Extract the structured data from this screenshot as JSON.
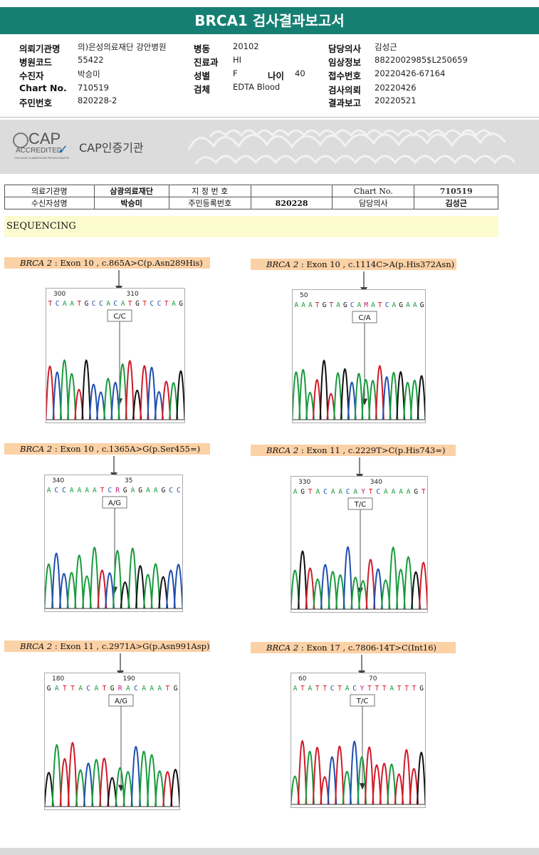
{
  "report": {
    "title": "BRCA1 검사결과보고서"
  },
  "info": {
    "left": [
      {
        "label": "의뢰기관명",
        "value": "의)은성의료재단 강안병원"
      },
      {
        "label": "병원코드",
        "value": "55422"
      },
      {
        "label": "수진자",
        "value": "박승미"
      },
      {
        "label": "Chart No.",
        "value": "710519"
      },
      {
        "label": "주민번호",
        "value": "820228-2"
      }
    ],
    "middle": [
      {
        "label": "병동",
        "value": "20102"
      },
      {
        "label": "진료과",
        "value": "HI"
      },
      {
        "label": "성별",
        "value": "F"
      },
      {
        "label": "검체",
        "value": "EDTA Blood"
      }
    ],
    "age": {
      "label": "나이",
      "value": "40"
    },
    "right": [
      {
        "label": "담당의사",
        "value": "김성근"
      },
      {
        "label": "임상정보",
        "value": "8822002985$L250659"
      },
      {
        "label": "접수번호",
        "value": "20220426-67164"
      },
      {
        "label": "검사의뢰",
        "value": "20220426"
      },
      {
        "label": "결과보고",
        "value": "20220521"
      }
    ]
  },
  "cap": {
    "logo_text": "CAP",
    "accredited": "ACCREDITED",
    "college": "COLLEGE of AMERICAN PATHOLOGISTS",
    "label": "CAP인증기관"
  },
  "patient_table": {
    "row1": {
      "l1": "의료기관명",
      "v1": "삼광의료재단",
      "l2": "지 정 번 호",
      "v2": "",
      "l3": "Chart No.",
      "v3": "710519"
    },
    "row2": {
      "l1": "수신자성명",
      "v1": "박승미",
      "l2": "주민등록번호",
      "v2": "820228",
      "l3": "담당의사",
      "v3": "김성근"
    }
  },
  "section": {
    "title": "SEQUENCING"
  },
  "variants": [
    {
      "gene": "BRCA 2",
      "desc": "Exon 10 , c.865A>C(p.Asn289His)",
      "pos1": "300",
      "pos2": "310",
      "pos3": "",
      "seq": "TCAATGCCACATGTCCTAG",
      "call": "C/C",
      "icon": "down-arrow-icon"
    },
    {
      "gene": "BRCA 2",
      "desc": "Exon 10 , c.1114C>A(p.His372Asn)",
      "pos1": "50",
      "pos2": "",
      "pos3": "",
      "seq": "AAATGTAGCAMATCAGAAG",
      "call": "C/A",
      "icon": "down-arrow-icon"
    },
    {
      "gene": "BRCA 2",
      "desc": "Exon 10 , c.1365A>G(p.Ser455=)",
      "pos1": "340",
      "pos2": "35",
      "pos3": "",
      "seq": "ACCAAAATCRGAGAAGCC",
      "call": "A/G",
      "icon": "down-arrow-icon"
    },
    {
      "gene": "BRCA 2",
      "desc": "Exon 11 , c.2229T>C(p.His743=)",
      "pos1": "330",
      "pos2": "340",
      "pos3": "",
      "seq": "AGTACAACAYTCAAAAGT",
      "call": "T/C",
      "icon": "down-arrow-icon"
    },
    {
      "gene": "BRCA 2",
      "desc": "Exon 11 , c.2971A>G(p.Asn991Asp)",
      "pos1": "180",
      "pos2": "190",
      "pos3": "",
      "seq": "GATTACATGRACAAATG",
      "call": "A/G",
      "icon": "down-arrow-icon"
    },
    {
      "gene": "BRCA 2",
      "desc": "Exon 17 , c.7806-14T>C(Int16)",
      "pos1": "60",
      "pos2": "70",
      "pos3": "",
      "seq": "ATATTCTACYTTTATTTG",
      "call": "T/C",
      "icon": "down-arrow-icon"
    }
  ]
}
